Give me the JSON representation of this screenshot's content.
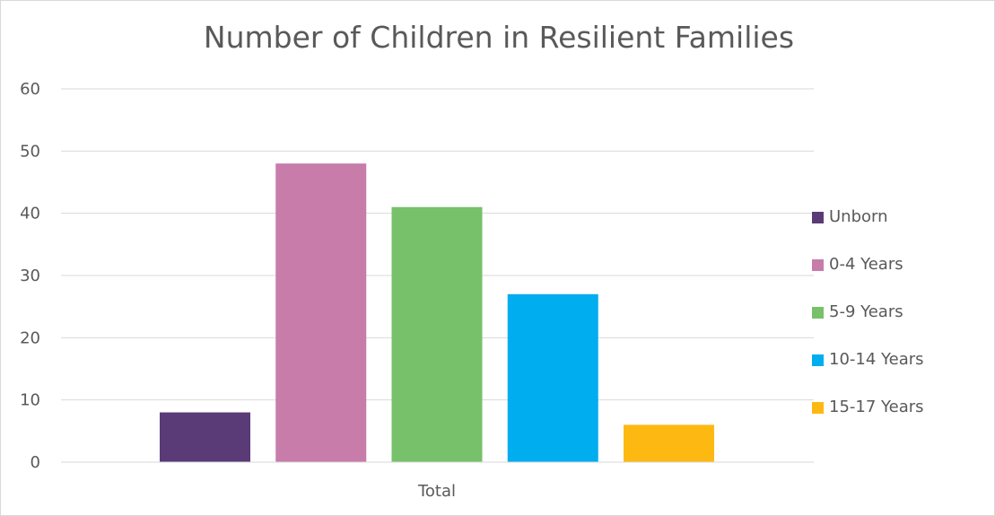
{
  "chart_data": {
    "type": "bar",
    "title": "Number of Children in Resilient Families",
    "categories": [
      "Total"
    ],
    "series": [
      {
        "name": "Unborn",
        "values": [
          8
        ],
        "color": "#5b3a78"
      },
      {
        "name": "0-4 Years",
        "values": [
          48
        ],
        "color": "#c77caa"
      },
      {
        "name": "5-9 Years",
        "values": [
          41
        ],
        "color": "#77c16a"
      },
      {
        "name": "10-14 Years",
        "values": [
          27
        ],
        "color": "#00adee"
      },
      {
        "name": "15-17 Years",
        "values": [
          6
        ],
        "color": "#fdb912"
      }
    ],
    "yticks": [
      "0",
      "10",
      "20",
      "30",
      "40",
      "50",
      "60"
    ],
    "ylim": [
      0,
      60
    ],
    "xlabel": "",
    "ylabel": "",
    "grid": true,
    "legend_position": "right"
  }
}
